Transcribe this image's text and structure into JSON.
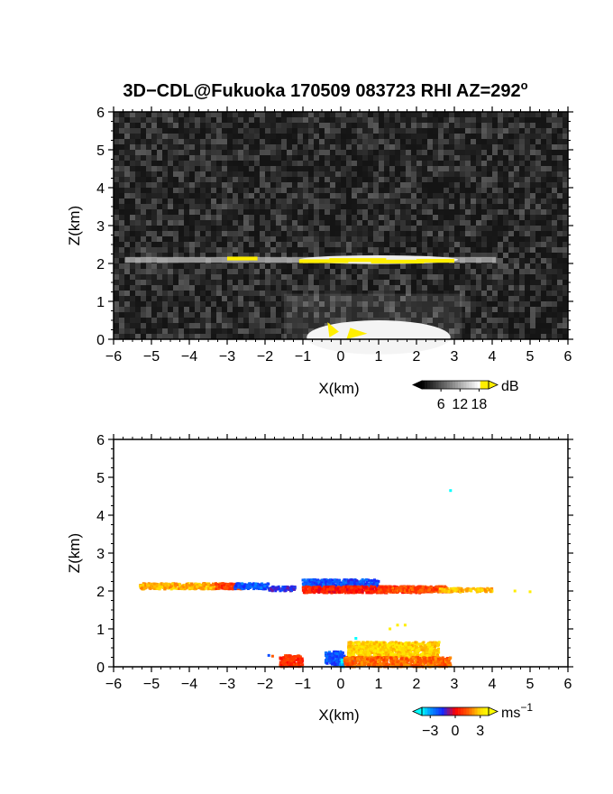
{
  "title": "3D−CDL@Fukuoka 170509 083723 RHI AZ=292",
  "title_degree": "o",
  "chart_data": [
    {
      "type": "heatmap",
      "panel": "reflectivity",
      "xlabel": "X(km)",
      "ylabel": "Z(km)",
      "xlim": [
        -6,
        6
      ],
      "ylim": [
        0,
        6
      ],
      "xticks": [
        "−6",
        "−5",
        "−4",
        "−3",
        "−2",
        "−1",
        "0",
        "1",
        "2",
        "3",
        "4",
        "5",
        "6"
      ],
      "yticks": [
        "0",
        "1",
        "2",
        "3",
        "4",
        "5",
        "6"
      ],
      "background": "noise",
      "colorbar": {
        "unit": "dB",
        "ticks": [
          "6",
          "12",
          "18"
        ],
        "range": [
          0,
          21
        ],
        "colors": [
          "#000000",
          "#ffffff",
          "#ffee00"
        ]
      },
      "features": [
        {
          "name": "cloud layer",
          "x": [
            -5.7,
            4.1
          ],
          "z": [
            2.0,
            2.25
          ],
          "bright_x": [
            -1.1,
            3.1
          ],
          "peak_dB": 19
        },
        {
          "name": "near-surface echo",
          "x": [
            -1.5,
            3.0
          ],
          "z": [
            0.0,
            0.45
          ],
          "peak_dB": 15
        }
      ]
    },
    {
      "type": "scatter",
      "panel": "velocity",
      "xlabel": "X(km)",
      "ylabel": "Z(km)",
      "xlim": [
        -6,
        6
      ],
      "ylim": [
        0,
        6
      ],
      "xticks": [
        "−6",
        "−5",
        "−4",
        "−3",
        "−2",
        "−1",
        "0",
        "1",
        "2",
        "3",
        "4",
        "5",
        "6"
      ],
      "yticks": [
        "0",
        "1",
        "2",
        "3",
        "4",
        "5",
        "6"
      ],
      "colorbar": {
        "unit": "ms",
        "unit_exp": "−1",
        "ticks": [
          "−3",
          "0",
          "3"
        ],
        "range": [
          -4,
          4
        ],
        "colors": [
          "#00ffff",
          "#0040ff",
          "#ff0000",
          "#ffff00"
        ]
      },
      "segments": [
        {
          "x": [
            -5.3,
            -3.2
          ],
          "z": [
            2.05,
            2.2
          ],
          "v": 2.5
        },
        {
          "x": [
            -3.3,
            -2.6
          ],
          "z": [
            2.05,
            2.2
          ],
          "v": 1.0
        },
        {
          "x": [
            -2.8,
            -1.9
          ],
          "z": [
            2.05,
            2.2
          ],
          "v": -2.2
        },
        {
          "x": [
            -1.9,
            -1.2
          ],
          "z": [
            2.0,
            2.12
          ],
          "v": -1.5
        },
        {
          "x": [
            -1.0,
            1.0
          ],
          "z": [
            2.1,
            2.3
          ],
          "v": -2.0
        },
        {
          "x": [
            -1.0,
            2.2
          ],
          "z": [
            1.95,
            2.12
          ],
          "v": 0.4
        },
        {
          "x": [
            1.0,
            2.8
          ],
          "z": [
            1.97,
            2.12
          ],
          "v": 1.2
        },
        {
          "x": [
            2.6,
            4.0
          ],
          "z": [
            1.97,
            2.07
          ],
          "v": 2.6
        },
        {
          "x": [
            -0.4,
            0.1
          ],
          "z": [
            0.05,
            0.4
          ],
          "v": -2.0
        },
        {
          "x": [
            0.0,
            0.4
          ],
          "z": [
            0.0,
            0.2
          ],
          "v": -3.5
        },
        {
          "x": [
            0.2,
            2.6
          ],
          "z": [
            0.25,
            0.65
          ],
          "v": 3.0
        },
        {
          "x": [
            0.1,
            2.9
          ],
          "z": [
            0.0,
            0.25
          ],
          "v": 1.6
        },
        {
          "x": [
            -1.6,
            -1.0
          ],
          "z": [
            0.0,
            0.3
          ],
          "v": 0.8
        }
      ],
      "scattered_points": [
        {
          "x": 2.9,
          "z": 4.65,
          "v": -4.0
        },
        {
          "x": 4.6,
          "z": 2.0,
          "v": 3.5
        },
        {
          "x": 5.0,
          "z": 1.98,
          "v": 3.5
        },
        {
          "x": 1.5,
          "z": 1.1,
          "v": 3.5
        },
        {
          "x": 1.7,
          "z": 1.1,
          "v": 3.5
        },
        {
          "x": 1.3,
          "z": 1.0,
          "v": 3.5
        },
        {
          "x": 0.4,
          "z": 0.75,
          "v": -4.0
        },
        {
          "x": -1.9,
          "z": 0.3,
          "v": -2.0
        },
        {
          "x": -1.8,
          "z": 0.28,
          "v": 1.5
        }
      ]
    }
  ]
}
